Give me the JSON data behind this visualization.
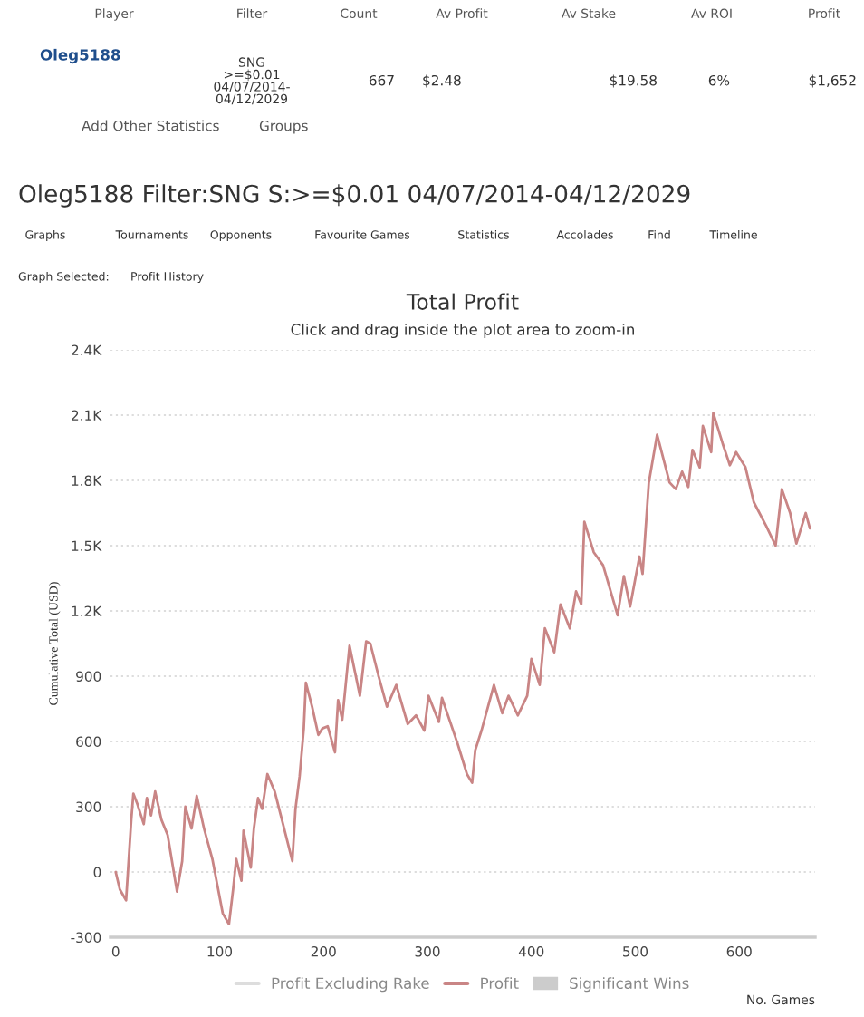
{
  "chart_data": {
    "type": "line",
    "title": "Total Profit",
    "subtitle": "Click and drag inside the plot area to zoom-in",
    "xlabel": "No. Games",
    "ylabel": "Cumulative Total (USD)",
    "annotations": [
      "Player",
      "Filter",
      "Count",
      "Av Profit",
      "Av Stake",
      "Av ROI",
      "Profit",
      "Oleg5188",
      "SNG\n>=$0.01\n04/07/2014-\n04/12/2029",
      "667",
      "$2.48",
      "$19.58",
      "6%",
      "$1,652",
      "Add Other Statistics",
      "Groups",
      "Oleg5188 Filter:SNG S:>=$0.01 04/07/2014-04/12/2029",
      "Graphs",
      "Tournaments",
      "Opponents",
      "Favourite Games",
      "Statistics",
      "Accolades",
      "Find",
      "Timeline",
      "Graph Selected:",
      "Profit History"
    ],
    "x": [
      0,
      4,
      10,
      15,
      17,
      21,
      27,
      30,
      34,
      38,
      44,
      50,
      59,
      64,
      67,
      73,
      78,
      85,
      93,
      103,
      109,
      113,
      116,
      121,
      123,
      130,
      133,
      137,
      141,
      146,
      153,
      161,
      170,
      173,
      177,
      181,
      183,
      189,
      195,
      199,
      204,
      211,
      214,
      218,
      225,
      235,
      241,
      245,
      253,
      261,
      270,
      281,
      289,
      297,
      301,
      311,
      314,
      329,
      338,
      343,
      346,
      352,
      364,
      372,
      378,
      387,
      396,
      400,
      408,
      413,
      422,
      428,
      437,
      443,
      448,
      451,
      460,
      469,
      483,
      489,
      495,
      504,
      507,
      513,
      521,
      533,
      539,
      545,
      551,
      555,
      562,
      565,
      573,
      575,
      584,
      591,
      597,
      606,
      614,
      626,
      635,
      641,
      649,
      655,
      664,
      668
    ],
    "series": [
      {
        "name": "Profit Excluding Rake",
        "color": "#dddddd",
        "values": [
          null,
          null,
          null,
          null,
          null,
          null,
          null,
          null,
          null,
          null,
          null,
          null,
          null,
          null,
          null,
          null,
          null,
          null,
          null,
          null,
          null,
          null,
          null,
          null,
          null,
          null,
          null,
          null,
          null,
          null,
          null,
          null,
          null,
          null,
          null,
          null,
          null,
          null,
          null,
          null,
          null,
          null,
          null,
          null,
          null,
          null,
          null,
          null,
          null,
          null,
          null,
          null,
          null,
          null,
          null,
          null,
          null,
          null,
          null,
          null,
          null,
          null,
          null,
          null,
          null,
          null,
          null,
          null,
          null,
          null,
          null,
          null,
          null,
          null,
          null,
          null,
          null,
          null,
          null,
          null,
          null,
          null,
          null,
          null,
          null,
          null,
          null,
          null,
          null,
          null,
          null,
          null,
          null,
          null,
          null,
          null,
          null,
          null,
          null,
          null,
          null,
          null,
          null,
          null,
          null,
          null
        ]
      },
      {
        "name": "Profit",
        "color": "#c98585",
        "values": [
          0,
          -80,
          -130,
          240,
          360,
          310,
          220,
          340,
          260,
          370,
          240,
          170,
          -90,
          50,
          300,
          200,
          350,
          200,
          60,
          -190,
          -240,
          -80,
          60,
          -40,
          190,
          20,
          200,
          340,
          290,
          450,
          370,
          220,
          50,
          290,
          440,
          660,
          870,
          760,
          630,
          660,
          670,
          550,
          790,
          700,
          1040,
          810,
          1060,
          1050,
          900,
          760,
          860,
          680,
          720,
          650,
          810,
          690,
          800,
          590,
          450,
          410,
          560,
          650,
          860,
          730,
          810,
          720,
          810,
          980,
          860,
          1120,
          1010,
          1230,
          1120,
          1290,
          1230,
          1610,
          1470,
          1410,
          1180,
          1360,
          1220,
          1450,
          1370,
          1790,
          2010,
          1790,
          1760,
          1840,
          1770,
          1940,
          1860,
          2050,
          1930,
          2110,
          1970,
          1870,
          1930,
          1860,
          1700,
          1590,
          1500,
          1760,
          1650,
          1510,
          1650,
          1580
        ]
      },
      {
        "name": "Significant Wins",
        "color": "#cccccc",
        "type": "area",
        "values": [
          null,
          null,
          null,
          null,
          null,
          null,
          null,
          null,
          null,
          null,
          null,
          null,
          null,
          null,
          null,
          null,
          null,
          null,
          null,
          null,
          null,
          null,
          null,
          null,
          null,
          null,
          null,
          null,
          null,
          null,
          null,
          null,
          null,
          null,
          null,
          null,
          null,
          null,
          null,
          null,
          null,
          null,
          null,
          null,
          null,
          null,
          null,
          null,
          null,
          null,
          null,
          null,
          null,
          null,
          null,
          null,
          null,
          null,
          null,
          null,
          null,
          null,
          null,
          null,
          null,
          null,
          null,
          null,
          null,
          null,
          null,
          null,
          null,
          null,
          null,
          null,
          null,
          null,
          null,
          null,
          null,
          null,
          null,
          null,
          null,
          null,
          null,
          null,
          null,
          null,
          null,
          null,
          null,
          null,
          null,
          null,
          null,
          null,
          null,
          null,
          null,
          null,
          null,
          null,
          null,
          null
        ]
      }
    ],
    "xlim": [
      -5,
      673
    ],
    "xticks": [
      0,
      100,
      200,
      300,
      400,
      500,
      600
    ],
    "ylim": [
      -300,
      2400
    ],
    "yticks": [
      {
        "value": -300,
        "label": "-300"
      },
      {
        "value": 0,
        "label": "0"
      },
      {
        "value": 300,
        "label": "300"
      },
      {
        "value": 600,
        "label": "600"
      },
      {
        "value": 900,
        "label": "900"
      },
      {
        "value": 1200,
        "label": "1.2K"
      },
      {
        "value": 1500,
        "label": "1.5K"
      },
      {
        "value": 1800,
        "label": "1.8K"
      },
      {
        "value": 2100,
        "label": "2.1K"
      },
      {
        "value": 2400,
        "label": "2.4K"
      }
    ],
    "grid": "y",
    "legend": "bottom",
    "marker": "none",
    "line_style": "solid"
  }
}
